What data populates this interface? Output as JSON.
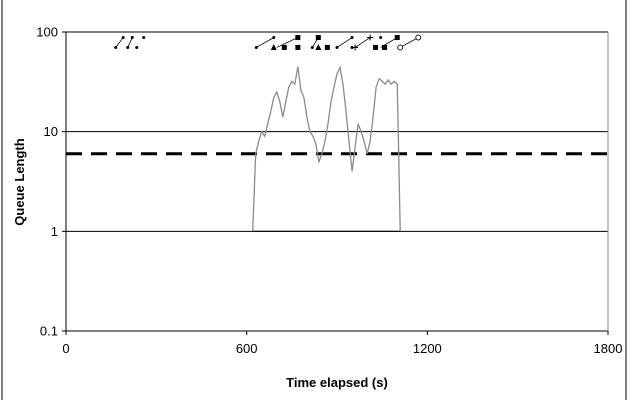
{
  "chart_data": {
    "type": "line",
    "title": "",
    "xlabel": "Time elapsed (s)",
    "ylabel": "Queue Length",
    "xlim": [
      0,
      1800
    ],
    "ylim": [
      0.1,
      100
    ],
    "yscale": "log",
    "xticks": [
      0,
      600,
      1200,
      1800
    ],
    "xtick_labels": [
      "0",
      "600",
      "1200",
      "1800"
    ],
    "yticks": [
      0.1,
      1,
      10,
      100
    ],
    "ytick_labels": [
      "0.1",
      "1",
      "10",
      "100"
    ],
    "grid": "horizontal major gridlines",
    "legend": "none",
    "reference_lines": [
      {
        "y": 6,
        "style": "dashed",
        "color": "#000000"
      }
    ],
    "series": [
      {
        "color": "#8a8a8a",
        "x": [
          620,
          630,
          640,
          650,
          660,
          670,
          680,
          690,
          700,
          710,
          720,
          730,
          740,
          750,
          760,
          770,
          780,
          790,
          800,
          810,
          820,
          830,
          840,
          850,
          860,
          870,
          880,
          890,
          900,
          910,
          920,
          930,
          940,
          950,
          960,
          970,
          980,
          990,
          1000,
          1010,
          1020,
          1030,
          1040,
          1050,
          1060,
          1070,
          1080,
          1090,
          1100,
          1105,
          1110
        ],
        "y": [
          1,
          6,
          8,
          10,
          9,
          12,
          16,
          22,
          25,
          20,
          14,
          20,
          28,
          32,
          30,
          45,
          26,
          22,
          14,
          10,
          9,
          7.5,
          5,
          6,
          8,
          12,
          20,
          28,
          38,
          44,
          30,
          16,
          8,
          4,
          7,
          12,
          10,
          8,
          6,
          8,
          14,
          28,
          34,
          32,
          30,
          33,
          30,
          32,
          30,
          6,
          1
        ]
      },
      {
        "color": "#000000",
        "x": [
          620,
          1110
        ],
        "y": [
          1,
          1
        ]
      }
    ],
    "markers": [
      {
        "x": 165,
        "y": 70,
        "symbol": "dot"
      },
      {
        "x": 190,
        "y": 88,
        "symbol": "dot"
      },
      {
        "x": 205,
        "y": 70,
        "symbol": "dot"
      },
      {
        "x": 220,
        "y": 88,
        "symbol": "dot"
      },
      {
        "x": 235,
        "y": 70,
        "symbol": "dot"
      },
      {
        "x": 258,
        "y": 88,
        "symbol": "dot"
      },
      {
        "x": 632,
        "y": 70,
        "symbol": "dot"
      },
      {
        "x": 690,
        "y": 88,
        "symbol": "dot"
      },
      {
        "x": 690,
        "y": 70,
        "symbol": "triangle"
      },
      {
        "x": 725,
        "y": 70,
        "symbol": "square"
      },
      {
        "x": 770,
        "y": 88,
        "symbol": "square"
      },
      {
        "x": 770,
        "y": 70,
        "symbol": "square"
      },
      {
        "x": 818,
        "y": 70,
        "symbol": "dot"
      },
      {
        "x": 838,
        "y": 88,
        "symbol": "square"
      },
      {
        "x": 838,
        "y": 70,
        "symbol": "triangle"
      },
      {
        "x": 868,
        "y": 70,
        "symbol": "square"
      },
      {
        "x": 900,
        "y": 70,
        "symbol": "dot"
      },
      {
        "x": 950,
        "y": 88,
        "symbol": "dot"
      },
      {
        "x": 950,
        "y": 70,
        "symbol": "dot"
      },
      {
        "x": 960,
        "y": 70,
        "symbol": "cross"
      },
      {
        "x": 1010,
        "y": 88,
        "symbol": "cross"
      },
      {
        "x": 1028,
        "y": 70,
        "symbol": "square"
      },
      {
        "x": 1045,
        "y": 88,
        "symbol": "dot"
      },
      {
        "x": 1058,
        "y": 70,
        "symbol": "square"
      },
      {
        "x": 1100,
        "y": 88,
        "symbol": "square"
      },
      {
        "x": 1110,
        "y": 70,
        "symbol": "circle"
      },
      {
        "x": 1170,
        "y": 88,
        "symbol": "circle"
      }
    ],
    "marker_links": [
      [
        165,
        70,
        190,
        88
      ],
      [
        205,
        70,
        220,
        88
      ],
      [
        632,
        70,
        690,
        88
      ],
      [
        700,
        70,
        770,
        88
      ],
      [
        818,
        70,
        838,
        88
      ],
      [
        900,
        70,
        950,
        88
      ],
      [
        960,
        70,
        1010,
        88
      ],
      [
        1045,
        70,
        1100,
        88
      ],
      [
        1110,
        70,
        1170,
        88
      ]
    ]
  }
}
